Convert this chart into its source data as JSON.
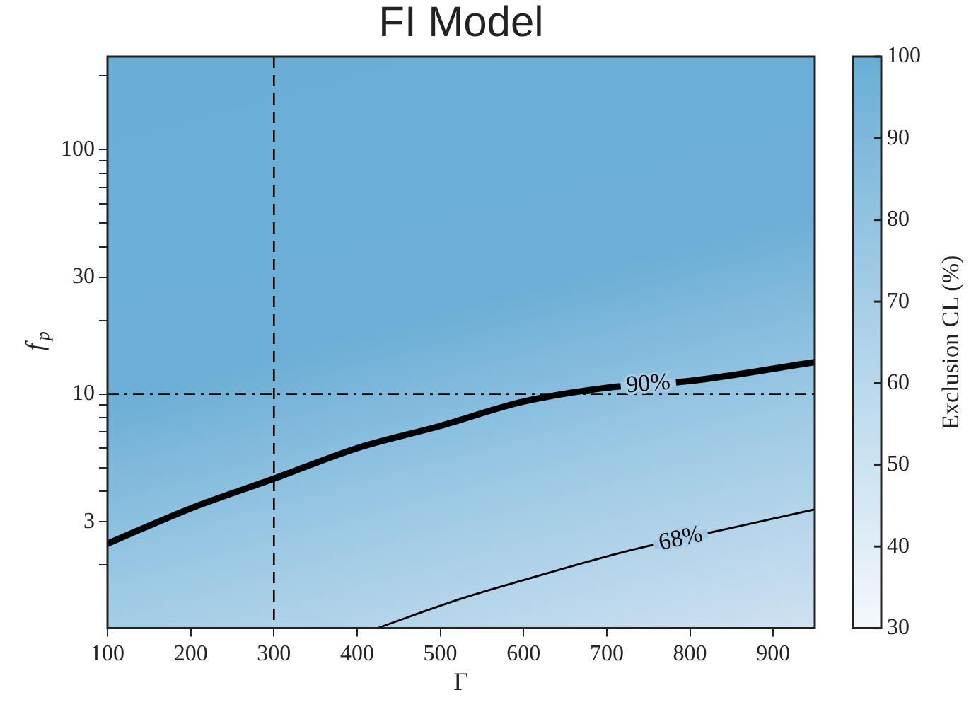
{
  "chart_data": {
    "type": "line",
    "title": "FI Model",
    "xlabel": "Γ",
    "ylabel": "f$_{p}$",
    "clabel": "Exclusion CL (%)",
    "clim": [
      30,
      100
    ],
    "cticks": [
      30,
      40,
      50,
      60,
      70,
      80,
      90,
      100
    ],
    "series": [
      {
        "name": "90%",
        "color": "#000000",
        "x": [
          100,
          200,
          300,
          400,
          500,
          600,
          700,
          800,
          950
        ],
        "values": [
          2.44,
          3.4,
          4.5,
          6.0,
          7.4,
          9.3,
          10.6,
          11.3,
          13.5
        ]
      },
      {
        "name": "68%",
        "color": "#000000",
        "x": [
          424,
          527,
          600,
          728,
          850,
          950
        ],
        "values": [
          1.1,
          1.46,
          1.73,
          2.29,
          2.83,
          3.37
        ]
      }
    ],
    "ref_lines": [
      {
        "axis": "x",
        "value": 300,
        "line_style": "dashed"
      },
      {
        "axis": "y",
        "value": 10,
        "line_style": "dashdot"
      }
    ],
    "xlim": [
      100,
      950
    ],
    "xticks": [
      100,
      200,
      300,
      400,
      500,
      600,
      700,
      800,
      900
    ],
    "ylim": [
      1.1,
      240
    ],
    "log": "y",
    "yticks": [
      {
        "value": 2,
        "label": null
      },
      3,
      {
        "value": 4,
        "label": null
      },
      {
        "value": 5,
        "label": null
      },
      {
        "value": 6,
        "label": null
      },
      {
        "value": 7,
        "label": null
      },
      {
        "value": 8,
        "label": null
      },
      {
        "value": 9,
        "label": null
      },
      10,
      {
        "value": 20,
        "label": null
      },
      30,
      {
        "value": 40,
        "label": null
      },
      {
        "value": 50,
        "label": null
      },
      {
        "value": 60,
        "label": null
      },
      {
        "value": 70,
        "label": null
      },
      {
        "value": 80,
        "label": null
      },
      {
        "value": 90,
        "label": null
      },
      100,
      {
        "value": 200,
        "label": null
      }
    ],
    "legend": false
  }
}
